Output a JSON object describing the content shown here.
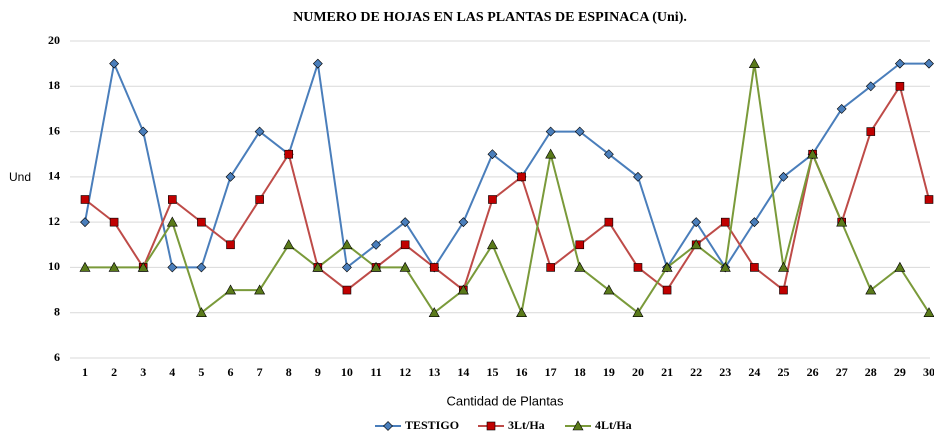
{
  "chart_data": {
    "type": "line",
    "title": "NUMERO DE HOJAS EN LAS PLANTAS DE ESPINACA (Uni).",
    "y_label": "Und",
    "x_label": "Cantidad de Plantas",
    "categories": [
      1,
      2,
      3,
      4,
      5,
      6,
      7,
      8,
      9,
      10,
      11,
      12,
      13,
      14,
      15,
      16,
      17,
      18,
      19,
      20,
      21,
      22,
      23,
      24,
      25,
      26,
      27,
      28,
      29,
      30
    ],
    "series": [
      {
        "name": "TESTIGO",
        "color": "#4a7ebb",
        "marker": "diamond",
        "values": [
          12,
          19,
          16,
          10,
          10,
          14,
          16,
          15,
          19,
          10,
          11,
          12,
          10,
          12,
          15,
          14,
          16,
          16,
          15,
          14,
          10,
          12,
          10,
          12,
          14,
          15,
          17,
          18,
          19,
          19
        ]
      },
      {
        "name": "3Lt/Ha",
        "color": "#be4b48",
        "marker": "square",
        "values": [
          13,
          12,
          10,
          13,
          12,
          11,
          13,
          15,
          10,
          9,
          10,
          11,
          10,
          9,
          13,
          14,
          10,
          11,
          12,
          10,
          9,
          11,
          12,
          10,
          9,
          15,
          12,
          16,
          18,
          13
        ]
      },
      {
        "name": "4Lt/Ha",
        "color": "#7a9a3a",
        "marker": "triangle",
        "values": [
          10,
          10,
          10,
          12,
          8,
          9,
          9,
          11,
          10,
          11,
          10,
          10,
          8,
          9,
          11,
          8,
          15,
          10,
          9,
          8,
          10,
          11,
          10,
          19,
          10,
          15,
          12,
          9,
          10,
          8
        ]
      }
    ],
    "ylim": [
      6,
      20
    ],
    "yticks": [
      6,
      8,
      10,
      12,
      14,
      16,
      18,
      20
    ],
    "grid": true
  }
}
